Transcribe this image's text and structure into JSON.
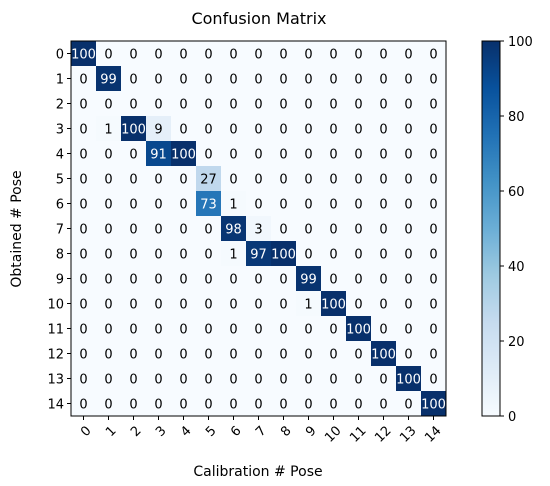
{
  "chart_data": {
    "type": "heatmap",
    "title": "Confusion Matrix",
    "xlabel": "Calibration # Pose",
    "ylabel": "Obtained # Pose",
    "x_categories": [
      "0",
      "1",
      "2",
      "3",
      "4",
      "5",
      "6",
      "7",
      "8",
      "9",
      "10",
      "11",
      "12",
      "13",
      "14"
    ],
    "y_categories": [
      "0",
      "1",
      "2",
      "3",
      "4",
      "5",
      "6",
      "7",
      "8",
      "9",
      "10",
      "11",
      "12",
      "13",
      "14"
    ],
    "values": [
      [
        100,
        0,
        0,
        0,
        0,
        0,
        0,
        0,
        0,
        0,
        0,
        0,
        0,
        0,
        0
      ],
      [
        0,
        99,
        0,
        0,
        0,
        0,
        0,
        0,
        0,
        0,
        0,
        0,
        0,
        0,
        0
      ],
      [
        0,
        0,
        0,
        0,
        0,
        0,
        0,
        0,
        0,
        0,
        0,
        0,
        0,
        0,
        0
      ],
      [
        0,
        1,
        100,
        9,
        0,
        0,
        0,
        0,
        0,
        0,
        0,
        0,
        0,
        0,
        0
      ],
      [
        0,
        0,
        0,
        91,
        100,
        0,
        0,
        0,
        0,
        0,
        0,
        0,
        0,
        0,
        0
      ],
      [
        0,
        0,
        0,
        0,
        0,
        27,
        0,
        0,
        0,
        0,
        0,
        0,
        0,
        0,
        0
      ],
      [
        0,
        0,
        0,
        0,
        0,
        73,
        1,
        0,
        0,
        0,
        0,
        0,
        0,
        0,
        0
      ],
      [
        0,
        0,
        0,
        0,
        0,
        0,
        98,
        3,
        0,
        0,
        0,
        0,
        0,
        0,
        0
      ],
      [
        0,
        0,
        0,
        0,
        0,
        0,
        1,
        97,
        100,
        0,
        0,
        0,
        0,
        0,
        0
      ],
      [
        0,
        0,
        0,
        0,
        0,
        0,
        0,
        0,
        0,
        99,
        0,
        0,
        0,
        0,
        0
      ],
      [
        0,
        0,
        0,
        0,
        0,
        0,
        0,
        0,
        0,
        1,
        100,
        0,
        0,
        0,
        0
      ],
      [
        0,
        0,
        0,
        0,
        0,
        0,
        0,
        0,
        0,
        0,
        0,
        100,
        0,
        0,
        0
      ],
      [
        0,
        0,
        0,
        0,
        0,
        0,
        0,
        0,
        0,
        0,
        0,
        0,
        100,
        0,
        0
      ],
      [
        0,
        0,
        0,
        0,
        0,
        0,
        0,
        0,
        0,
        0,
        0,
        0,
        0,
        100,
        0
      ],
      [
        0,
        0,
        0,
        0,
        0,
        0,
        0,
        0,
        0,
        0,
        0,
        0,
        0,
        0,
        100
      ]
    ],
    "colorbar": {
      "min": 0,
      "max": 100,
      "ticks": [
        0,
        20,
        40,
        60,
        80,
        100
      ],
      "colormap": "Blues"
    },
    "grid": false
  }
}
